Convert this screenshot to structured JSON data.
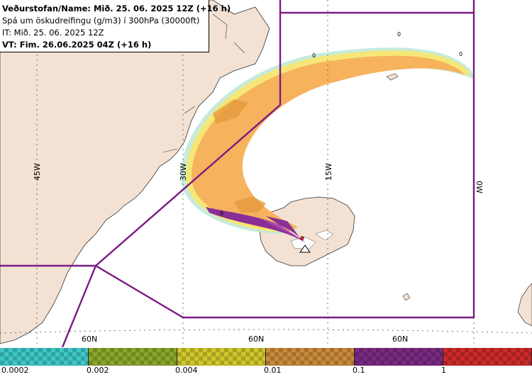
{
  "header": {
    "line1": "Veðurstofan/Name: Mið. 25. 06. 2025 12Z (+16 h)",
    "line2": "Spá um öskudreifingu (g/m3) í 300hPa (30000ft)",
    "line3": "IT: Mið. 25. 06. 2025 12Z",
    "line4": "VT: Fim. 26.06.2025 04Z (+16 h)"
  },
  "map": {
    "lon_labels": [
      "45W",
      "30W",
      "15W",
      "0W"
    ],
    "lat_labels": [
      "60N",
      "60N",
      "60N"
    ],
    "contour_labels": [
      "0",
      "0",
      "0",
      "0"
    ]
  },
  "colorbar": {
    "colors": [
      "#3ec7c7",
      "#8aa62b",
      "#cfc62c",
      "#c98a3a",
      "#7a2a82",
      "#cc2a2a"
    ],
    "ticks": [
      "0.0002",
      "0.002",
      "0.004",
      "0.01",
      "0.1",
      "1"
    ]
  }
}
